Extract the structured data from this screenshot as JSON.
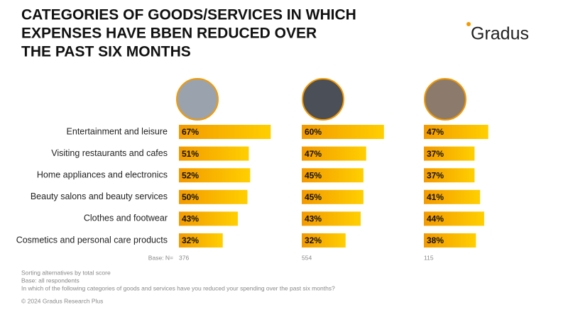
{
  "title_lines": [
    "CATEGORIES OF GOODS/SERVICES IN WHICH",
    "EXPENSES HAVE BBEN REDUCED OVER",
    "THE PAST SIX MONTHS"
  ],
  "logo": "Gradus",
  "chart_data": {
    "type": "bar",
    "orientation": "horizontal",
    "categories": [
      "Entertainment and leisure",
      "Visiting restaurants and cafes",
      "Home appliances and electronics",
      "Beauty salons and beauty services",
      "Clothes and footwear",
      "Cosmetics and personal care products"
    ],
    "bar_gradient": [
      "#f39a00",
      "#ffcf00"
    ],
    "series": [
      {
        "values": [
          67,
          51,
          52,
          50,
          43,
          32
        ],
        "value_labels": [
          "67%",
          "51%",
          "52%",
          "50%",
          "43%",
          "32%"
        ]
      },
      {
        "values": [
          60,
          47,
          45,
          45,
          43,
          32
        ],
        "value_labels": [
          "60%",
          "47%",
          "45%",
          "45%",
          "43%",
          "32%"
        ]
      },
      {
        "values": [
          47,
          37,
          37,
          41,
          44,
          38
        ],
        "value_labels": [
          "47%",
          "37%",
          "37%",
          "41%",
          "44%",
          "38%"
        ]
      }
    ],
    "base_label": "Base: N=",
    "base_n": [
      376,
      554,
      115
    ]
  },
  "footnotes": [
    "Sorting alternatives by total score",
    "Base: all respondents",
    "In which of the following categories of goods and services have you reduced your spending over the past six months?"
  ],
  "copyright": "© 2024 Gradus Research Plus"
}
